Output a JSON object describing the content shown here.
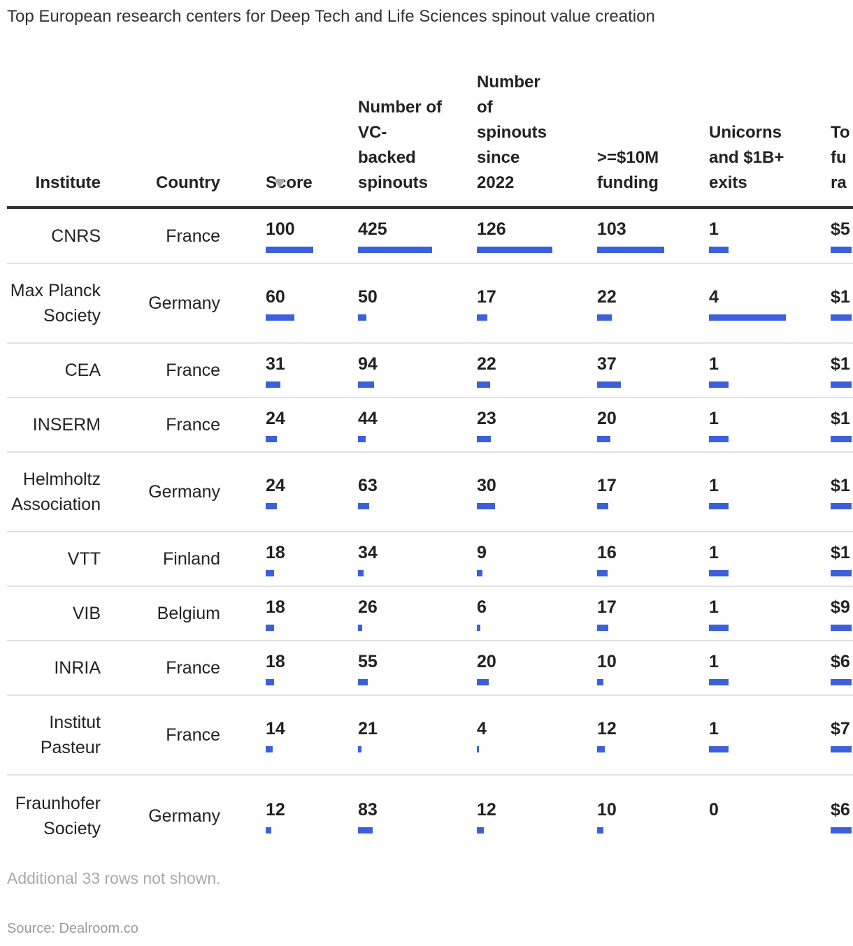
{
  "title": "Top European research centers for Deep Tech and Life Sciences spinout value creation",
  "table": {
    "columns": [
      "Institute",
      "Country",
      "Score",
      "Number of VC-backed spinouts",
      "Number of spinouts since 2022",
      ">=$10M funding",
      "Unicorns and $1B+ exits",
      "To fu ra"
    ],
    "rows": [
      [
        "CNRS",
        "France",
        100,
        425,
        126,
        103,
        1,
        "$5"
      ],
      [
        "Max Planck Society",
        "Germany",
        60,
        50,
        17,
        22,
        4,
        "$1"
      ],
      [
        "CEA",
        "France",
        31,
        94,
        22,
        37,
        1,
        "$1"
      ],
      [
        "INSERM",
        "France",
        24,
        44,
        23,
        20,
        1,
        "$1"
      ],
      [
        "Helmholtz Association",
        "Germany",
        24,
        63,
        30,
        17,
        1,
        "$1"
      ],
      [
        "VTT",
        "Finland",
        18,
        34,
        9,
        16,
        1,
        "$1"
      ],
      [
        "VIB",
        "Belgium",
        18,
        26,
        6,
        17,
        1,
        "$9"
      ],
      [
        "INRIA",
        "France",
        18,
        55,
        20,
        10,
        1,
        "$6"
      ],
      [
        "Institut Pasteur",
        "France",
        14,
        21,
        4,
        12,
        1,
        "$7"
      ],
      [
        "Fraunhofer Society",
        "Germany",
        12,
        83,
        12,
        10,
        0,
        "$6"
      ]
    ]
  },
  "note": "Additional 33 rows not shown.",
  "source": "Source: Dealroom.co"
}
